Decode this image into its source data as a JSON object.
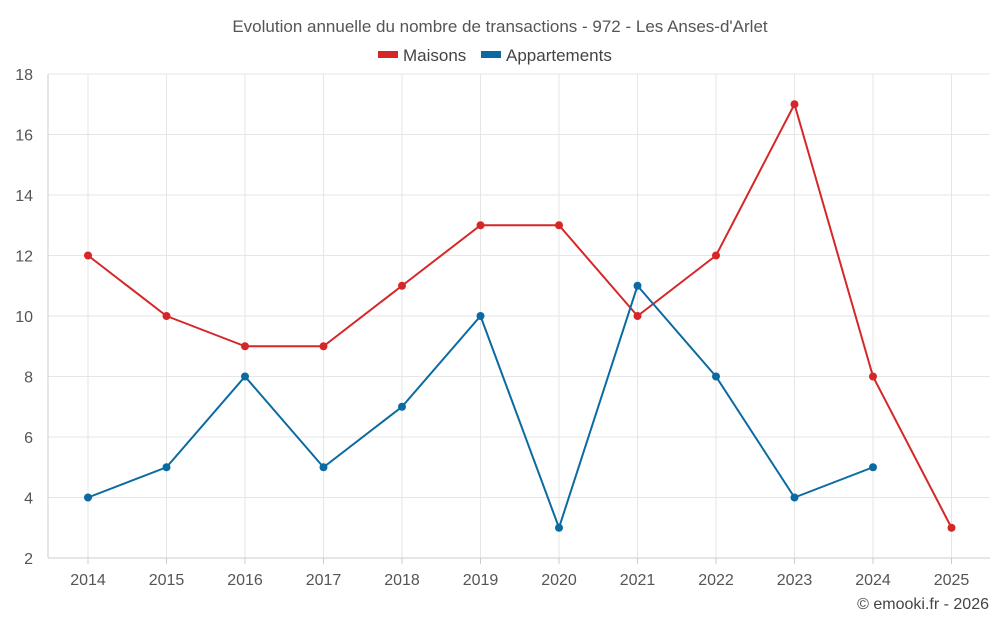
{
  "chart_data": {
    "type": "line",
    "title": "Evolution annuelle du nombre de transactions - 972 - Les Anses-d'Arlet",
    "categories": [
      "2014",
      "2015",
      "2016",
      "2017",
      "2018",
      "2019",
      "2020",
      "2021",
      "2022",
      "2023",
      "2024",
      "2025"
    ],
    "series": [
      {
        "name": "Maisons",
        "color": "#d62728",
        "values": [
          12,
          10,
          9,
          9,
          11,
          13,
          13,
          10,
          12,
          17,
          8,
          3
        ]
      },
      {
        "name": "Appartements",
        "color": "#0a6aa1",
        "values": [
          4,
          5,
          8,
          5,
          7,
          10,
          3,
          11,
          8,
          4,
          5,
          null
        ]
      }
    ],
    "ylim": [
      2,
      18
    ],
    "yticks": [
      2,
      4,
      6,
      8,
      10,
      12,
      14,
      16,
      18
    ],
    "grid": true,
    "legend": "top-center",
    "xlabel": "",
    "ylabel": ""
  },
  "credit": "© emooki.fr - 2026"
}
